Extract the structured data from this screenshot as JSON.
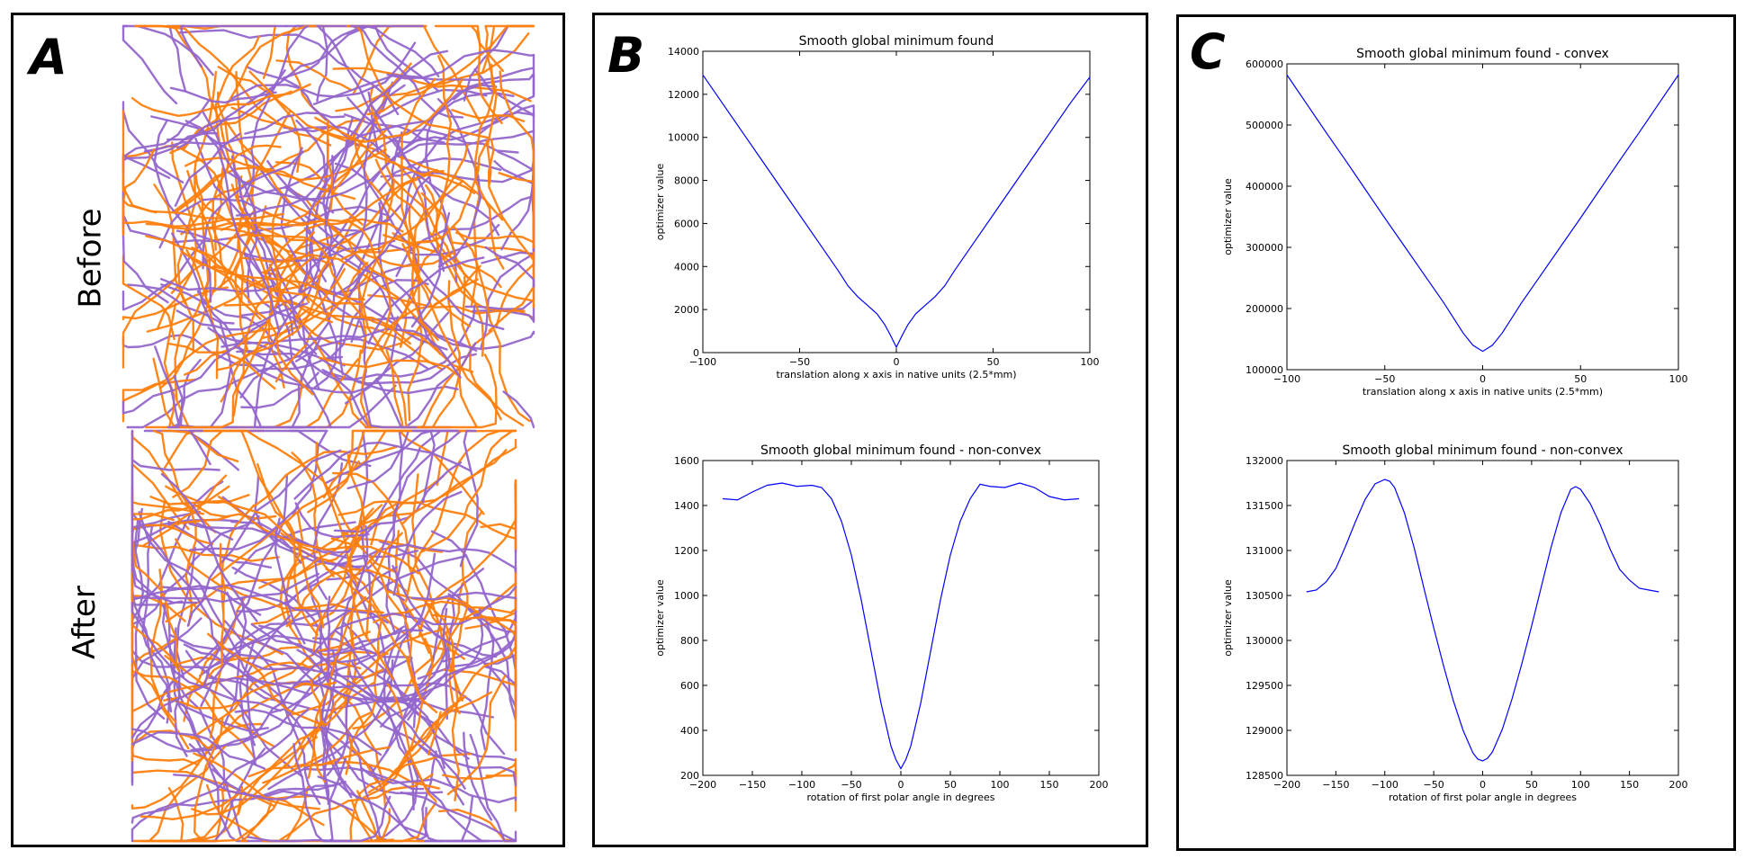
{
  "panels": {
    "A": {
      "letter": "A",
      "before_label": "Before",
      "after_label": "After",
      "colors": {
        "purple": "#9466cc",
        "orange": "#ff7f0e"
      }
    },
    "B": {
      "letter": "B"
    },
    "C": {
      "letter": "C"
    }
  },
  "chart_data": [
    {
      "id": "B-top",
      "type": "line",
      "title": "Smooth global minimum found",
      "xlabel": "translation along x axis in native units (2.5*mm)",
      "ylabel": "optimizer value",
      "xlim": [
        -100,
        100
      ],
      "ylim": [
        0,
        14000
      ],
      "xticks": [
        -100,
        -50,
        0,
        50,
        100
      ],
      "yticks": [
        0,
        2000,
        4000,
        6000,
        8000,
        10000,
        12000,
        14000
      ],
      "xtick_labels": [
        "−100",
        "−50",
        "0",
        "50",
        "100"
      ],
      "ytick_labels": [
        "0",
        "2000",
        "4000",
        "6000",
        "8000",
        "10000",
        "12000",
        "14000"
      ],
      "color": "#0000ff",
      "x": [
        -100,
        -90,
        -80,
        -70,
        -60,
        -50,
        -40,
        -30,
        -25,
        -20,
        -15,
        -10,
        -6,
        -3,
        0,
        3,
        6,
        10,
        15,
        20,
        25,
        30,
        40,
        50,
        60,
        70,
        80,
        90,
        100
      ],
      "y": [
        12900,
        11600,
        10300,
        9000,
        7700,
        6400,
        5100,
        3800,
        3100,
        2600,
        2200,
        1800,
        1300,
        800,
        250,
        800,
        1300,
        1800,
        2200,
        2600,
        3100,
        3800,
        5100,
        6400,
        7700,
        9000,
        10300,
        11600,
        12800
      ]
    },
    {
      "id": "B-bottom",
      "type": "line",
      "title": "Smooth global minimum found - non-convex",
      "xlabel": "rotation of first polar angle in degrees",
      "ylabel": "optimizer value",
      "xlim": [
        -200,
        200
      ],
      "ylim": [
        200,
        1600
      ],
      "xticks": [
        -200,
        -150,
        -100,
        -50,
        0,
        50,
        100,
        150,
        200
      ],
      "yticks": [
        200,
        400,
        600,
        800,
        1000,
        1200,
        1400,
        1600
      ],
      "xtick_labels": [
        "−200",
        "−150",
        "−100",
        "−50",
        "0",
        "50",
        "100",
        "150",
        "200"
      ],
      "ytick_labels": [
        "200",
        "400",
        "600",
        "800",
        "1000",
        "1200",
        "1400",
        "1600"
      ],
      "color": "#0000ff",
      "x": [
        -180,
        -165,
        -150,
        -135,
        -120,
        -105,
        -90,
        -80,
        -70,
        -60,
        -50,
        -40,
        -30,
        -20,
        -10,
        -5,
        0,
        5,
        10,
        20,
        30,
        40,
        50,
        60,
        70,
        80,
        90,
        105,
        120,
        135,
        150,
        165,
        180
      ],
      "y": [
        1430,
        1425,
        1460,
        1490,
        1500,
        1485,
        1490,
        1480,
        1430,
        1330,
        1180,
        980,
        750,
        520,
        330,
        270,
        230,
        270,
        330,
        520,
        750,
        980,
        1180,
        1330,
        1430,
        1495,
        1485,
        1480,
        1500,
        1480,
        1440,
        1425,
        1430
      ]
    },
    {
      "id": "C-top",
      "type": "line",
      "title": "Smooth global minimum found - convex",
      "xlabel": "translation along x axis in native units (2.5*mm)",
      "ylabel": "optimizer value",
      "xlim": [
        -100,
        100
      ],
      "ylim": [
        100000,
        600000
      ],
      "xticks": [
        -100,
        -50,
        0,
        50,
        100
      ],
      "yticks": [
        100000,
        200000,
        300000,
        400000,
        500000,
        600000
      ],
      "xtick_labels": [
        "−100",
        "−50",
        "0",
        "50",
        "100"
      ],
      "ytick_labels": [
        "100000",
        "200000",
        "300000",
        "400000",
        "500000",
        "600000"
      ],
      "color": "#0000ff",
      "x": [
        -100,
        -90,
        -80,
        -70,
        -60,
        -50,
        -40,
        -30,
        -20,
        -15,
        -10,
        -5,
        0,
        5,
        10,
        15,
        20,
        30,
        40,
        50,
        60,
        70,
        80,
        90,
        100
      ],
      "y": [
        582000,
        535000,
        488000,
        442000,
        395000,
        348000,
        302000,
        256000,
        210000,
        185000,
        160000,
        140000,
        130000,
        140000,
        160000,
        185000,
        210000,
        256000,
        302000,
        348000,
        395000,
        442000,
        488000,
        535000,
        582000
      ]
    },
    {
      "id": "C-bottom",
      "type": "line",
      "title": "Smooth global minimum found - non-convex",
      "xlabel": "rotation of first polar angle in degrees",
      "ylabel": "optimizer value",
      "xlim": [
        -200,
        200
      ],
      "ylim": [
        128500,
        132000
      ],
      "xticks": [
        -200,
        -150,
        -100,
        -50,
        0,
        50,
        100,
        150,
        200
      ],
      "yticks": [
        128500,
        129000,
        129500,
        130000,
        130500,
        131000,
        131500,
        132000
      ],
      "xtick_labels": [
        "−200",
        "−150",
        "−100",
        "−50",
        "0",
        "50",
        "100",
        "150",
        "200"
      ],
      "ytick_labels": [
        "128500",
        "129000",
        "129500",
        "130000",
        "130500",
        "131000",
        "131500",
        "132000"
      ],
      "color": "#0000ff",
      "x": [
        -180,
        -170,
        -160,
        -150,
        -140,
        -130,
        -120,
        -110,
        -100,
        -95,
        -90,
        -80,
        -70,
        -60,
        -50,
        -40,
        -30,
        -20,
        -10,
        -5,
        0,
        5,
        10,
        20,
        30,
        40,
        50,
        60,
        70,
        80,
        90,
        95,
        100,
        110,
        120,
        130,
        140,
        150,
        160,
        170,
        180
      ],
      "y": [
        130540,
        130560,
        130650,
        130800,
        131050,
        131320,
        131570,
        131740,
        131790,
        131770,
        131700,
        131420,
        131030,
        130580,
        130140,
        129720,
        129330,
        129000,
        128750,
        128680,
        128660,
        128690,
        128760,
        129010,
        129350,
        129740,
        130160,
        130600,
        131040,
        131420,
        131680,
        131710,
        131680,
        131520,
        131290,
        131020,
        130790,
        130670,
        130580,
        130560,
        130540
      ]
    }
  ]
}
